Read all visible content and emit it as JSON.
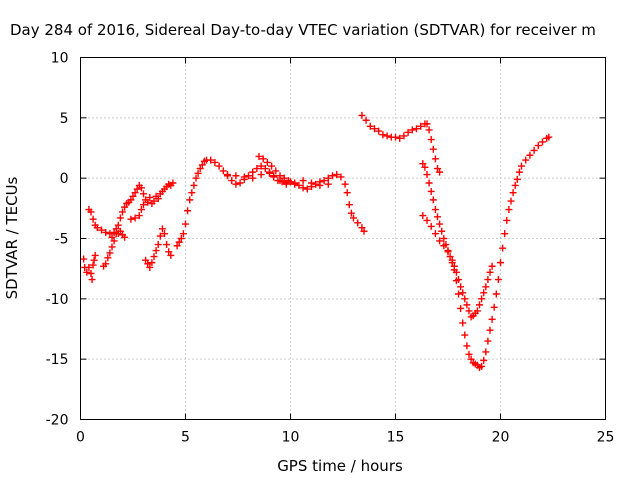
{
  "chart_data": {
    "type": "scatter",
    "title": "Day 284 of 2016, Sidereal Day-to-day VTEC variation (SDTVAR) for receiver m",
    "xlabel": "GPS time / hours",
    "ylabel": "SDTVAR / TECUs",
    "xlim": [
      0,
      25
    ],
    "ylim": [
      -20,
      10
    ],
    "x_ticks": [
      "0",
      "5",
      "10",
      "15",
      "20",
      "25"
    ],
    "y_ticks": [
      "10",
      "5",
      "0",
      "-5",
      "-10",
      "-15",
      "-20"
    ],
    "grid": true,
    "marker": "plus",
    "color": "#ff0000",
    "series": [
      {
        "points": [
          [
            0.15,
            -6.7
          ],
          [
            0.2,
            -7.4
          ],
          [
            0.3,
            -7.8
          ],
          [
            0.4,
            -7.4
          ],
          [
            0.5,
            -7.9
          ],
          [
            0.55,
            -8.4
          ],
          [
            0.6,
            -7.2
          ],
          [
            0.65,
            -6.8
          ],
          [
            0.7,
            -6.4
          ],
          [
            0.4,
            -2.6
          ],
          [
            0.5,
            -2.8
          ],
          [
            0.6,
            -3.4
          ],
          [
            0.7,
            -3.9
          ],
          [
            0.8,
            -4.1
          ],
          [
            1.0,
            -4.3
          ],
          [
            1.2,
            -4.5
          ],
          [
            1.4,
            -4.6
          ],
          [
            1.5,
            -4.9
          ],
          [
            1.6,
            -4.5
          ],
          [
            1.7,
            -4.2
          ],
          [
            1.8,
            -4.6
          ],
          [
            1.9,
            -4.4
          ],
          [
            2.0,
            -4.7
          ],
          [
            2.1,
            -4.9
          ],
          [
            1.1,
            -7.3
          ],
          [
            1.2,
            -7.1
          ],
          [
            1.3,
            -6.6
          ],
          [
            1.4,
            -6.2
          ],
          [
            1.5,
            -5.7
          ],
          [
            1.6,
            -5.2
          ],
          [
            1.7,
            -4.6
          ],
          [
            1.8,
            -3.9
          ],
          [
            1.9,
            -3.3
          ],
          [
            2.0,
            -2.8
          ],
          [
            2.1,
            -2.4
          ],
          [
            2.2,
            -2.1
          ],
          [
            2.3,
            -2.0
          ],
          [
            2.4,
            -1.8
          ],
          [
            2.5,
            -1.5
          ],
          [
            2.6,
            -1.2
          ],
          [
            2.7,
            -0.9
          ],
          [
            2.8,
            -0.6
          ],
          [
            2.9,
            -0.8
          ],
          [
            3.0,
            -1.3
          ],
          [
            2.4,
            -3.4
          ],
          [
            2.6,
            -3.3
          ],
          [
            2.8,
            -3.1
          ],
          [
            2.9,
            -2.6
          ],
          [
            3.0,
            -2.2
          ],
          [
            3.1,
            -1.8
          ],
          [
            3.2,
            -2.0
          ],
          [
            3.3,
            -1.6
          ],
          [
            3.4,
            -2.1
          ],
          [
            3.5,
            -1.9
          ],
          [
            3.6,
            -1.5
          ],
          [
            3.7,
            -1.7
          ],
          [
            3.8,
            -1.3
          ],
          [
            3.9,
            -1.1
          ],
          [
            4.0,
            -0.9
          ],
          [
            4.1,
            -0.7
          ],
          [
            4.2,
            -0.5
          ],
          [
            4.3,
            -0.6
          ],
          [
            4.4,
            -0.4
          ],
          [
            3.1,
            -6.8
          ],
          [
            3.2,
            -7.1
          ],
          [
            3.3,
            -7.4
          ],
          [
            3.4,
            -7.0
          ],
          [
            3.5,
            -6.5
          ],
          [
            3.6,
            -6.0
          ],
          [
            3.7,
            -5.5
          ],
          [
            3.8,
            -4.8
          ],
          [
            3.9,
            -4.2
          ],
          [
            4.0,
            -4.6
          ],
          [
            4.1,
            -5.5
          ],
          [
            4.2,
            -6.1
          ],
          [
            4.3,
            -6.4
          ],
          [
            4.6,
            -5.6
          ],
          [
            4.7,
            -5.3
          ],
          [
            4.8,
            -5.0
          ],
          [
            4.9,
            -4.6
          ],
          [
            5.0,
            -3.8
          ],
          [
            5.1,
            -2.7
          ],
          [
            5.2,
            -1.8
          ],
          [
            5.3,
            -1.2
          ],
          [
            5.4,
            -0.6
          ],
          [
            5.5,
            0.0
          ],
          [
            5.6,
            0.4
          ],
          [
            5.7,
            0.8
          ],
          [
            5.8,
            1.1
          ],
          [
            5.9,
            1.4
          ],
          [
            6.0,
            1.5
          ],
          [
            6.2,
            1.5
          ],
          [
            6.4,
            1.3
          ],
          [
            6.6,
            1.0
          ],
          [
            6.8,
            0.6
          ],
          [
            7.0,
            0.2
          ],
          [
            7.2,
            -0.2
          ],
          [
            7.4,
            -0.5
          ],
          [
            7.6,
            -0.4
          ],
          [
            7.8,
            -0.1
          ],
          [
            8.0,
            0.2
          ],
          [
            8.2,
            0.5
          ],
          [
            8.4,
            0.8
          ],
          [
            8.6,
            1.0
          ],
          [
            8.8,
            0.8
          ],
          [
            9.0,
            0.4
          ],
          [
            9.2,
            0.1
          ],
          [
            9.4,
            -0.2
          ],
          [
            9.6,
            -0.3
          ],
          [
            9.8,
            -0.4
          ],
          [
            10.0,
            -0.3
          ],
          [
            10.2,
            -0.5
          ],
          [
            10.4,
            -0.6
          ],
          [
            10.6,
            -0.8
          ],
          [
            10.8,
            -0.9
          ],
          [
            11.0,
            -0.7
          ],
          [
            11.2,
            -0.5
          ],
          [
            11.4,
            -0.3
          ],
          [
            11.6,
            -0.2
          ],
          [
            11.8,
            0.0
          ],
          [
            12.0,
            0.2
          ],
          [
            12.2,
            0.3
          ],
          [
            12.4,
            0.1
          ],
          [
            12.6,
            -0.5
          ],
          [
            12.7,
            -1.2
          ],
          [
            12.8,
            -2.2
          ],
          [
            12.9,
            -2.9
          ],
          [
            13.0,
            -3.3
          ],
          [
            13.2,
            -3.7
          ],
          [
            13.4,
            -4.1
          ],
          [
            13.5,
            -4.4
          ],
          [
            7.0,
            0.3
          ],
          [
            7.4,
            0.2
          ],
          [
            7.8,
            0.1
          ],
          [
            8.2,
            0.0
          ],
          [
            8.6,
            0.3
          ],
          [
            9.0,
            0.5
          ],
          [
            9.2,
            0.2
          ],
          [
            9.5,
            -0.2
          ],
          [
            9.8,
            -0.5
          ],
          [
            10.2,
            -0.4
          ],
          [
            10.6,
            -0.2
          ],
          [
            11.0,
            -0.4
          ],
          [
            11.4,
            -0.6
          ],
          [
            11.8,
            -0.5
          ],
          [
            8.5,
            1.8
          ],
          [
            8.7,
            1.6
          ],
          [
            8.9,
            1.3
          ],
          [
            9.1,
            1.0
          ],
          [
            9.3,
            0.6
          ],
          [
            9.5,
            0.2
          ],
          [
            9.7,
            0.0
          ],
          [
            9.9,
            -0.2
          ],
          [
            13.4,
            5.2
          ],
          [
            13.6,
            4.8
          ],
          [
            13.8,
            4.3
          ],
          [
            14.0,
            4.1
          ],
          [
            14.2,
            3.9
          ],
          [
            14.4,
            3.6
          ],
          [
            14.6,
            3.5
          ],
          [
            14.8,
            3.4
          ],
          [
            15.0,
            3.4
          ],
          [
            15.2,
            3.3
          ],
          [
            15.4,
            3.5
          ],
          [
            15.6,
            3.8
          ],
          [
            15.8,
            4.0
          ],
          [
            16.0,
            4.1
          ],
          [
            16.2,
            4.3
          ],
          [
            16.4,
            4.5
          ],
          [
            16.5,
            4.5
          ],
          [
            16.6,
            4.0
          ],
          [
            16.7,
            3.2
          ],
          [
            16.8,
            2.4
          ],
          [
            16.9,
            1.6
          ],
          [
            17.0,
            0.8
          ],
          [
            17.1,
            0.5
          ],
          [
            16.3,
            1.2
          ],
          [
            16.4,
            0.9
          ],
          [
            16.5,
            0.3
          ],
          [
            16.6,
            -0.4
          ],
          [
            16.7,
            -1.1
          ],
          [
            16.8,
            -1.8
          ],
          [
            16.9,
            -2.6
          ],
          [
            17.0,
            -3.2
          ],
          [
            17.1,
            -3.8
          ],
          [
            17.2,
            -4.4
          ],
          [
            17.3,
            -5.0
          ],
          [
            17.4,
            -5.5
          ],
          [
            17.5,
            -6.0
          ],
          [
            17.6,
            -6.5
          ],
          [
            17.7,
            -7.0
          ],
          [
            17.8,
            -7.3
          ],
          [
            17.9,
            -7.8
          ],
          [
            18.0,
            -8.4
          ],
          [
            18.1,
            -9.0
          ],
          [
            18.2,
            -9.5
          ],
          [
            18.3,
            -10.0
          ],
          [
            18.4,
            -10.5
          ],
          [
            18.5,
            -11.0
          ],
          [
            18.6,
            -11.5
          ],
          [
            18.7,
            -11.4
          ],
          [
            18.8,
            -11.2
          ],
          [
            18.9,
            -11.0
          ],
          [
            19.0,
            -10.5
          ],
          [
            19.1,
            -10.0
          ],
          [
            19.2,
            -9.5
          ],
          [
            19.3,
            -9.0
          ],
          [
            19.4,
            -8.4
          ],
          [
            19.5,
            -7.8
          ],
          [
            19.6,
            -7.3
          ],
          [
            16.3,
            -3.1
          ],
          [
            16.5,
            -3.5
          ],
          [
            16.7,
            -4.0
          ],
          [
            16.9,
            -4.6
          ],
          [
            17.1,
            -5.2
          ],
          [
            17.3,
            -5.6
          ],
          [
            17.5,
            -6.1
          ],
          [
            17.7,
            -6.8
          ],
          [
            17.8,
            -7.6
          ],
          [
            17.9,
            -8.5
          ],
          [
            18.0,
            -9.6
          ],
          [
            18.1,
            -10.8
          ],
          [
            18.2,
            -12.0
          ],
          [
            18.3,
            -13.0
          ],
          [
            18.4,
            -13.9
          ],
          [
            18.5,
            -14.6
          ],
          [
            18.6,
            -15.0
          ],
          [
            18.7,
            -15.3
          ],
          [
            18.8,
            -15.4
          ],
          [
            18.9,
            -15.5
          ],
          [
            19.0,
            -15.7
          ],
          [
            19.1,
            -15.6
          ],
          [
            19.2,
            -15.1
          ],
          [
            19.3,
            -14.4
          ],
          [
            19.4,
            -13.5
          ],
          [
            19.5,
            -12.6
          ],
          [
            19.6,
            -11.7
          ],
          [
            19.7,
            -10.7
          ],
          [
            19.8,
            -9.6
          ],
          [
            19.9,
            -8.4
          ],
          [
            20.0,
            -7.0
          ],
          [
            20.1,
            -5.8
          ],
          [
            20.2,
            -4.6
          ],
          [
            20.3,
            -3.5
          ],
          [
            20.4,
            -2.6
          ],
          [
            20.5,
            -1.9
          ],
          [
            20.6,
            -1.2
          ],
          [
            20.7,
            -0.6
          ],
          [
            20.8,
            -0.1
          ],
          [
            20.9,
            0.5
          ],
          [
            21.0,
            1.0
          ],
          [
            21.2,
            1.5
          ],
          [
            21.4,
            1.9
          ],
          [
            21.6,
            2.3
          ],
          [
            21.8,
            2.7
          ],
          [
            22.0,
            3.0
          ],
          [
            22.2,
            3.3
          ],
          [
            22.3,
            3.4
          ]
        ]
      }
    ]
  }
}
